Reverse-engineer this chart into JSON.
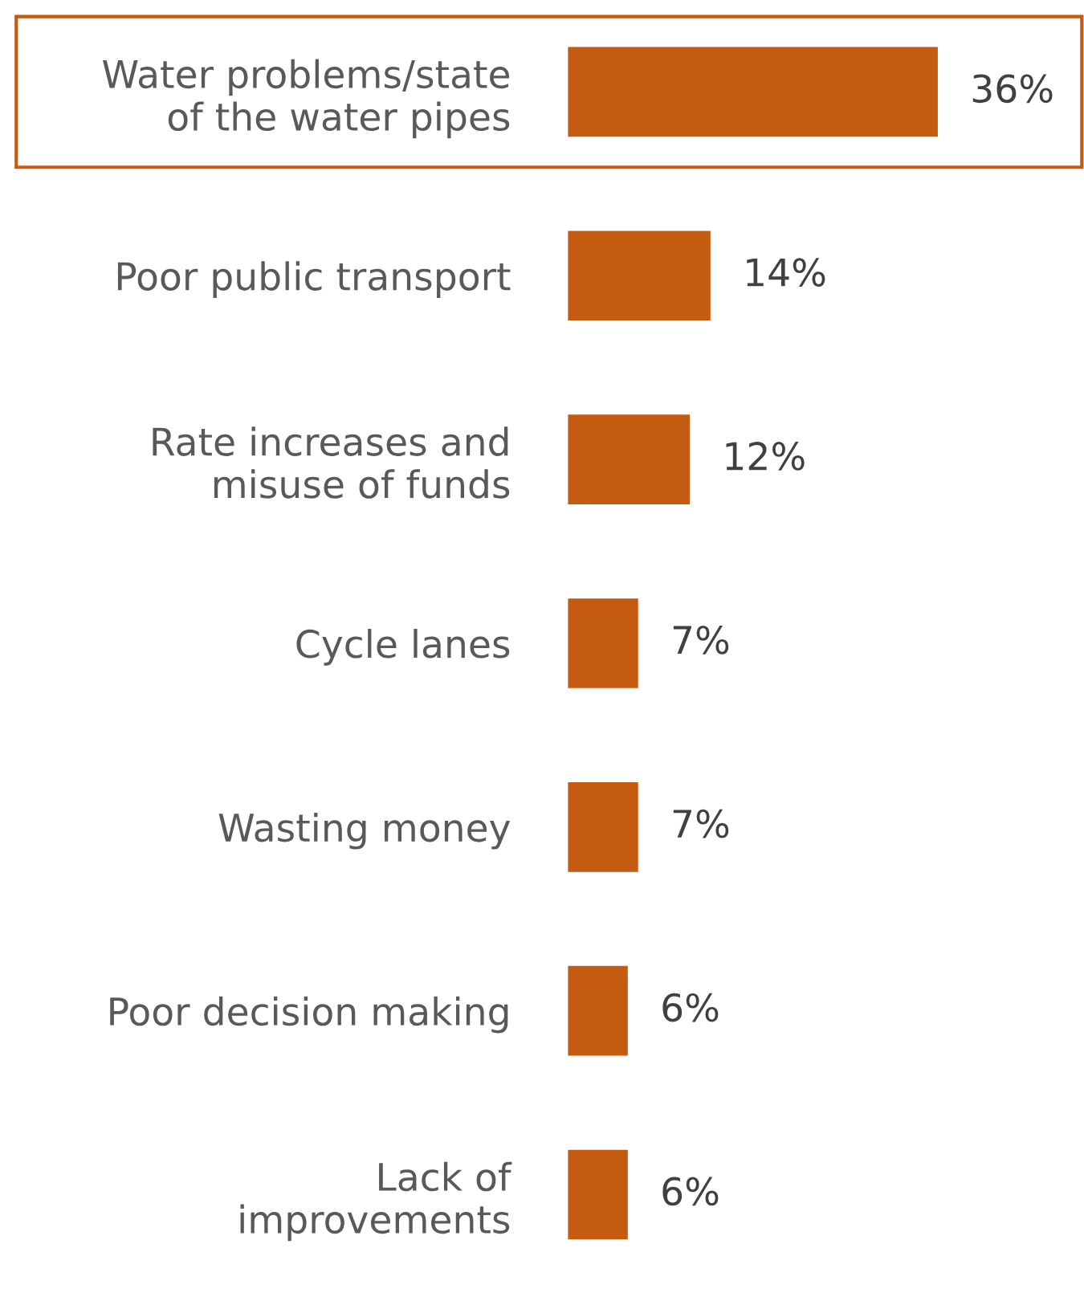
{
  "chart_data": {
    "type": "bar",
    "orientation": "horizontal",
    "categories": [
      "Water problems/state\nof the water pipes",
      "Poor public transport",
      "Rate increases and\nmisuse of funds",
      "Cycle lanes",
      "Wasting money",
      "Poor decision making",
      "Lack of\nimprovements"
    ],
    "values": [
      36,
      14,
      12,
      7,
      7,
      6,
      6
    ],
    "value_labels": [
      "36%",
      "14%",
      "12%",
      "7%",
      "7%",
      "6%",
      "6%"
    ],
    "color": "#c55a11"
  }
}
